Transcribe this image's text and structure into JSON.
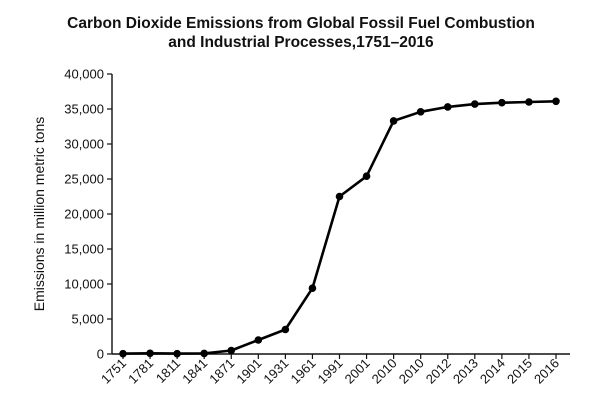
{
  "chart_data": {
    "type": "line",
    "title_line1": "Carbon Dioxide Emissions from Global Fossil Fuel Combustion",
    "title_line2": "and Industrial Processes,1751–2016",
    "xlabel": "",
    "ylabel": "Emissions in million metric tons",
    "ylim": [
      0,
      40000
    ],
    "yticks": [
      0,
      5000,
      10000,
      15000,
      20000,
      25000,
      30000,
      35000,
      40000
    ],
    "ytick_labels": [
      "0",
      "5,000",
      "10,000",
      "15,000",
      "20,000",
      "25,000",
      "30,000",
      "35,000",
      "40,000"
    ],
    "categories": [
      "1751",
      "1781",
      "1811",
      "1841",
      "1871",
      "1901",
      "1931",
      "1961",
      "1991",
      "2001",
      "2010",
      "2010",
      "2012",
      "2013",
      "2014",
      "2015",
      "2016"
    ],
    "series": [
      {
        "name": "CO2 emissions",
        "values": [
          50,
          100,
          50,
          80,
          500,
          2000,
          3500,
          9400,
          22500,
          25400,
          33300,
          34600,
          35300,
          35700,
          35900,
          36000,
          36100
        ]
      }
    ],
    "grid": false,
    "line_color": "#000000"
  }
}
